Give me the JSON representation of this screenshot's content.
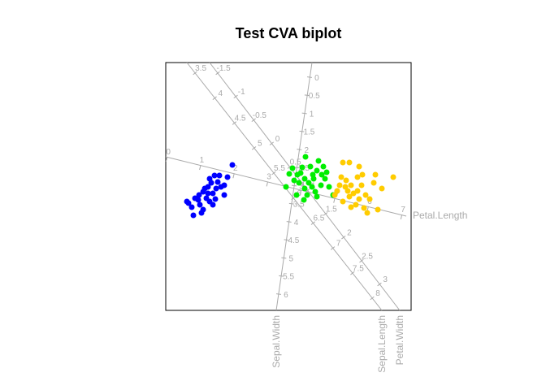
{
  "chart_data": {
    "type": "biplot",
    "title": "Test CVA biplot",
    "xlim": [
      -151,
      151
    ],
    "ylim": [
      -153,
      152
    ],
    "series": [
      {
        "color": "#0000ff",
        "x": [
          -69,
          -85,
          -91,
          -95,
          -99,
          -105,
          -110,
          -115,
          -123,
          -117,
          -107,
          -97,
          -90,
          -79,
          -83,
          -93,
          -103,
          -97,
          -87,
          -109,
          -119,
          -101,
          -111,
          -89,
          -79,
          -93,
          -75,
          -125,
          -105,
          -99
        ],
        "y": [
          26,
          13,
          13,
          4,
          -1,
          -7,
          -11,
          -15,
          -21,
          -36,
          -33,
          -19,
          -16,
          -11,
          -1,
          -9,
          -3,
          9,
          5,
          -23,
          -26,
          -15,
          -17,
          -3,
          1,
          -23,
          11,
          -19,
          -29,
          -9
        ]
      },
      {
        "color": "#00ee00",
        "x": [
          21,
          5,
          1,
          -3,
          10,
          15,
          20,
          25,
          35,
          43,
          30,
          40,
          50,
          55,
          35,
          20,
          27,
          45,
          33,
          13,
          7,
          37,
          23,
          17,
          41,
          29,
          47,
          11,
          31,
          19
        ],
        "y": [
          36,
          22,
          15,
          -1,
          -11,
          16,
          9,
          4,
          19,
          24,
          14,
          1,
          -1,
          -11,
          -13,
          -3,
          24,
          9,
          -7,
          4,
          7,
          31,
          -11,
          23,
          14,
          -1,
          17,
          14,
          9,
          -17
        ]
      },
      {
        "color": "#ffcc00",
        "x": [
          67,
          75,
          87,
          107,
          129,
          65,
          85,
          91,
          60,
          70,
          77,
          85,
          95,
          75,
          67,
          83,
          93,
          110,
          100,
          80,
          73,
          90,
          63,
          105,
          97,
          77,
          57,
          115,
          87,
          71
        ],
        "y": [
          29,
          29,
          24,
          14,
          11,
          11,
          11,
          14,
          -6,
          -1,
          1,
          -6,
          -11,
          -13,
          -19,
          -23,
          -27,
          -29,
          -16,
          -9,
          -6,
          1,
          1,
          4,
          -33,
          -26,
          -11,
          -3,
          -16,
          7
        ]
      }
    ],
    "biplot_axes": [
      {
        "name": "Petal.Length",
        "from": [
          -151,
          36
        ],
        "to": [
          145,
          -37
        ],
        "first_tick_at": [
          -150,
          33
        ],
        "last_tick_at": [
          139,
          -38
        ],
        "ticks": [
          0,
          1,
          2,
          3,
          4,
          5,
          6,
          7
        ]
      },
      {
        "name": "Sepal.Width",
        "from": [
          29,
          152
        ],
        "to": [
          -15,
          -153
        ],
        "first_tick_at": [
          26,
          134
        ],
        "last_tick_at": [
          -12,
          -133
        ],
        "ticks": [
          0,
          0.5,
          1,
          1.5,
          2,
          2.5,
          3,
          3.5,
          4,
          4.5,
          5,
          5.5,
          6
        ]
      },
      {
        "name": "Sepal.Length",
        "from": [
          -125,
          152
        ],
        "to": [
          115,
          -153
        ],
        "first_tick_at": [
          -115,
          139
        ],
        "last_tick_at": [
          103,
          -138
        ],
        "ticks": [
          3.5,
          4,
          4.5,
          5,
          5.5,
          6,
          6.5,
          7,
          7.5,
          8
        ]
      },
      {
        "name": "Petal.Width",
        "from": [
          -97,
          152
        ],
        "to": [
          137,
          -153
        ],
        "first_tick_at": [
          -87,
          139
        ],
        "last_tick_at": [
          112,
          -121
        ],
        "ticks": [
          -1.5,
          -1,
          -0.5,
          0,
          0.5,
          1,
          1.5,
          2,
          2.5,
          3
        ]
      }
    ]
  }
}
